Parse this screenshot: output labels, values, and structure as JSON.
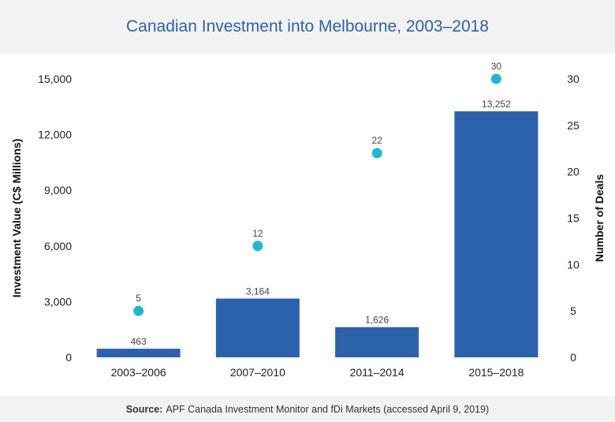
{
  "header": {
    "title": "Canadian Investment into Melbourne, 2003–2018"
  },
  "footer": {
    "source_label": "Source:",
    "source_text": "APF Canada Investment Monitor and fDi Markets (accessed April 9, 2019)"
  },
  "colors": {
    "bars": "#2b62ab",
    "dots": "#1fb8d4",
    "title": "#2e62ab",
    "band": "#f2f2f2"
  },
  "chart_data": {
    "type": "bar",
    "title": "Canadian Investment into Melbourne, 2003–2018",
    "categories": [
      "2003–2006",
      "2007–2010",
      "2011–2014",
      "2015–2018"
    ],
    "series": [
      {
        "values": [
          463,
          3164,
          1626,
          13252
        ],
        "axis": "left",
        "kind": "bar",
        "labels": [
          "463",
          "3,164",
          "1,626",
          "13,252"
        ]
      },
      {
        "values": [
          5,
          12,
          22,
          30
        ],
        "axis": "right",
        "kind": "scatter",
        "labels": [
          "5",
          "12",
          "22",
          "30"
        ]
      }
    ],
    "ylabel": "Investment Value (C$ Millions)",
    "y2label": "Number of Deals",
    "ylim": [
      0,
      15000
    ],
    "yticks": [
      0,
      3000,
      6000,
      9000,
      12000,
      15000
    ],
    "ytick_labels": [
      "0",
      "3,000",
      "6,000",
      "9,000",
      "12,000",
      "15,000"
    ],
    "y2lim": [
      0,
      30
    ],
    "y2ticks": [
      0,
      5,
      10,
      15,
      20,
      25,
      30
    ],
    "y2tick_labels": [
      "0",
      "5",
      "10",
      "15",
      "20",
      "25",
      "30"
    ],
    "grid": false
  }
}
